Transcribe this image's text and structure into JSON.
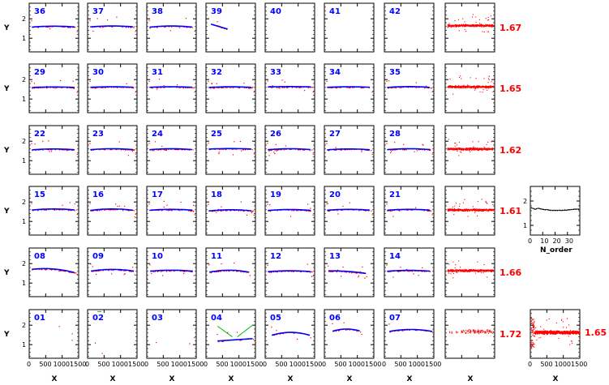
{
  "chart_data": {
    "type": "scatter",
    "panel_y_ticks": [
      "1",
      "2"
    ],
    "panel_x_ticks": [
      "0",
      "500",
      "1000",
      "1500"
    ],
    "row_ylabel": "Y",
    "col_xlabel": "X",
    "ylim": [
      0.3,
      2.8
    ],
    "xlim": [
      0,
      1500
    ],
    "rows": [
      {
        "orders": [
          "36",
          "37",
          "38",
          "39",
          "40",
          "41",
          "42"
        ],
        "summary": "1.67"
      },
      {
        "orders": [
          "29",
          "30",
          "31",
          "32",
          "33",
          "34",
          "35"
        ],
        "summary": "1.65"
      },
      {
        "orders": [
          "22",
          "23",
          "24",
          "25",
          "26",
          "27",
          "28"
        ],
        "summary": "1.62"
      },
      {
        "orders": [
          "15",
          "16",
          "17",
          "18",
          "19",
          "20",
          "21"
        ],
        "summary": "1.61"
      },
      {
        "orders": [
          "08",
          "09",
          "10",
          "11",
          "12",
          "13",
          "14"
        ],
        "summary": "1.66"
      },
      {
        "orders": [
          "01",
          "02",
          "03",
          "04",
          "05",
          "06",
          "07"
        ],
        "summary": "1.72"
      }
    ],
    "fit_params": {
      "36": {
        "a": 1.62,
        "b": 0.05,
        "x0": 80,
        "x1": 1420
      },
      "37": {
        "a": 1.63,
        "b": 0.05,
        "x0": 80,
        "x1": 1420
      },
      "38": {
        "a": 1.63,
        "b": 0.07,
        "x0": 80,
        "x1": 1420
      },
      "39": {
        "a": 1.6,
        "b": 0.0,
        "x0": 150,
        "x1": 650,
        "slope": -0.35
      },
      "29": {
        "a": 1.62,
        "b": 0.03,
        "x0": 80,
        "x1": 1420
      },
      "30": {
        "a": 1.63,
        "b": 0.03,
        "x0": 80,
        "x1": 1420
      },
      "31": {
        "a": 1.63,
        "b": 0.03,
        "x0": 80,
        "x1": 1420
      },
      "32": {
        "a": 1.63,
        "b": 0.04,
        "x0": 80,
        "x1": 1420
      },
      "33": {
        "a": 1.64,
        "b": 0.02,
        "x0": 80,
        "x1": 1420
      },
      "34": {
        "a": 1.63,
        "b": 0.03,
        "x0": 80,
        "x1": 1420
      },
      "35": {
        "a": 1.64,
        "b": 0.05,
        "x0": 80,
        "x1": 1420
      },
      "22": {
        "a": 1.6,
        "b": 0.05,
        "x0": 80,
        "x1": 1420
      },
      "23": {
        "a": 1.61,
        "b": 0.05,
        "x0": 80,
        "x1": 1420
      },
      "24": {
        "a": 1.61,
        "b": 0.05,
        "x0": 80,
        "x1": 1420
      },
      "25": {
        "a": 1.62,
        "b": 0.03,
        "x0": 80,
        "x1": 1420
      },
      "26": {
        "a": 1.61,
        "b": 0.05,
        "x0": 80,
        "x1": 1420
      },
      "27": {
        "a": 1.6,
        "b": 0.05,
        "x0": 80,
        "x1": 1420
      },
      "28": {
        "a": 1.61,
        "b": 0.05,
        "x0": 80,
        "x1": 1420
      },
      "15": {
        "a": 1.64,
        "b": 0.06,
        "x0": 80,
        "x1": 1420
      },
      "16": {
        "a": 1.64,
        "b": 0.08,
        "x0": 80,
        "x1": 1420
      },
      "17": {
        "a": 1.62,
        "b": 0.05,
        "x0": 80,
        "x1": 1420
      },
      "18": {
        "a": 1.6,
        "b": 0.07,
        "x0": 80,
        "x1": 1420
      },
      "19": {
        "a": 1.61,
        "b": 0.05,
        "x0": 80,
        "x1": 1420
      },
      "20": {
        "a": 1.62,
        "b": 0.05,
        "x0": 80,
        "x1": 1420
      },
      "21": {
        "a": 1.62,
        "b": 0.05,
        "x0": 80,
        "x1": 1420
      },
      "08": {
        "a": 1.72,
        "b": 0.12,
        "x0": 80,
        "x1": 1420,
        "slope": -0.1
      },
      "09": {
        "a": 1.7,
        "b": 0.1,
        "x0": 100,
        "x1": 1400
      },
      "10": {
        "a": 1.66,
        "b": 0.06,
        "x0": 100,
        "x1": 1400
      },
      "11": {
        "a": 1.66,
        "b": 0.14,
        "x0": 100,
        "x1": 1300
      },
      "12": {
        "a": 1.63,
        "b": 0.05,
        "x0": 80,
        "x1": 1420
      },
      "13": {
        "a": 1.6,
        "b": 0.06,
        "x0": 120,
        "x1": 1250,
        "slope": -0.08
      },
      "14": {
        "a": 1.65,
        "b": 0.05,
        "x0": 80,
        "x1": 1420
      },
      "04": {
        "a": 1.25,
        "b": 0.0,
        "x0": 350,
        "x1": 1450,
        "slope": 0.08
      },
      "05": {
        "a": 1.63,
        "b": 0.22,
        "x0": 200,
        "x1": 1350
      },
      "06": {
        "a": 1.8,
        "b": 0.3,
        "x0": 250,
        "x1": 1100
      },
      "07": {
        "a": 1.78,
        "b": 0.12,
        "x0": 150,
        "x1": 1450
      }
    },
    "point_density": {
      "36": 40,
      "37": 40,
      "38": 35,
      "39": 12,
      "40": 0,
      "41": 0,
      "42": 0,
      "01": 3,
      "02": 2,
      "03": 3,
      "04": 10,
      "05": 25,
      "06": 20,
      "07": 35
    },
    "order_inset": {
      "xlabel": "N_order",
      "x_ticks": [
        "0",
        "10",
        "20",
        "30"
      ],
      "y_ticks": [
        "1",
        "2"
      ],
      "xlim": [
        0,
        40
      ],
      "ylim": [
        0.6,
        2.6
      ],
      "x": [
        1,
        2,
        3,
        4,
        5,
        6,
        7,
        8,
        9,
        10,
        11,
        12,
        13,
        14,
        15,
        16,
        17,
        18,
        19,
        20,
        21,
        22,
        23,
        24,
        25,
        26,
        27,
        28,
        29,
        30,
        31,
        32,
        33,
        34,
        35,
        36,
        37,
        38,
        39
      ],
      "y": [
        1.72,
        1.7,
        1.68,
        1.66,
        1.68,
        1.7,
        1.7,
        1.68,
        1.67,
        1.66,
        1.65,
        1.64,
        1.65,
        1.64,
        1.63,
        1.62,
        1.62,
        1.61,
        1.62,
        1.61,
        1.62,
        1.61,
        1.62,
        1.62,
        1.61,
        1.62,
        1.62,
        1.63,
        1.62,
        1.63,
        1.64,
        1.64,
        1.65,
        1.65,
        1.66,
        1.67,
        1.66,
        1.67,
        1.66
      ]
    },
    "combined_inset": {
      "summary": "1.65",
      "x_ticks": [
        "0",
        "500",
        "1000",
        "1500"
      ],
      "xlim": [
        0,
        1500
      ],
      "ylim": [
        0.3,
        2.8
      ]
    },
    "colors": {
      "points": "#ff0000",
      "fit": "#0000ff",
      "alt_fit": "#00bb00",
      "order_label": "#0000ff",
      "summary_label": "#ff0000",
      "axis": "#000000"
    }
  }
}
